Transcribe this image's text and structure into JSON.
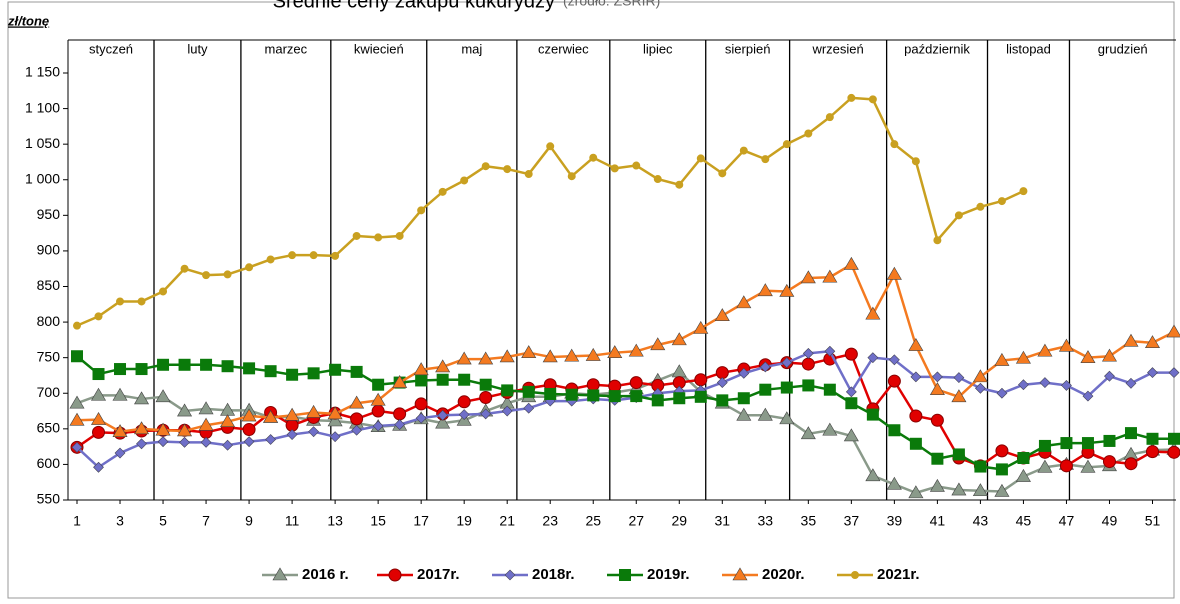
{
  "chart_data": {
    "type": "line",
    "title": "Średnie ceny zakupu kukurydzy",
    "subtitle": "(źródło: ZSRIR)",
    "y_label": "zł/tonę",
    "months": [
      "styczeń",
      "luty",
      "marzec",
      "kwiecień",
      "maj",
      "czerwiec",
      "lipiec",
      "sierpień",
      "wrzesień",
      "październik",
      "listopad",
      "grudzień"
    ],
    "x": [
      1,
      2,
      3,
      4,
      5,
      6,
      7,
      8,
      9,
      10,
      11,
      12,
      13,
      14,
      15,
      16,
      17,
      18,
      19,
      20,
      21,
      22,
      23,
      24,
      25,
      26,
      27,
      28,
      29,
      30,
      31,
      32,
      33,
      34,
      35,
      36,
      37,
      38,
      39,
      40,
      41,
      42,
      43,
      44,
      45,
      46,
      47,
      48,
      49,
      50,
      51,
      52
    ],
    "xlim": [
      1,
      52
    ],
    "xticks": [
      1,
      3,
      5,
      7,
      9,
      11,
      13,
      15,
      17,
      19,
      21,
      23,
      25,
      27,
      29,
      31,
      33,
      35,
      37,
      39,
      41,
      43,
      45,
      47,
      49,
      51
    ],
    "ylim": [
      550,
      1150
    ],
    "yticks": [
      550,
      600,
      650,
      700,
      750,
      800,
      850,
      900,
      950,
      {
        "value": 1000,
        "label": "1 000"
      },
      {
        "value": 1050,
        "label": "1 050"
      },
      {
        "value": 1100,
        "label": "1 100"
      },
      {
        "value": 1150,
        "label": "1 150"
      }
    ],
    "grid": false,
    "legend": "bottom",
    "series": [
      {
        "name": "2016 r.",
        "color": "#8a9a8a",
        "marker": "triangle",
        "values": [
          686,
          697,
          697,
          692,
          695,
          675,
          678,
          676,
          676,
          666,
          667,
          662,
          661,
          658,
          653,
          655,
          664,
          658,
          662,
          675,
          686,
          695,
          695,
          700,
          698,
          701,
          706,
          718,
          730,
          702,
          686,
          669,
          669,
          664,
          643,
          648,
          640,
          584,
          572,
          560,
          569,
          564,
          563,
          562,
          583,
          596,
          600,
          596,
          598,
          614,
          620,
          621
        ]
      },
      {
        "name": "2017r.",
        "color": "#e00000",
        "marker": "circle",
        "values": [
          624,
          645,
          644,
          647,
          648,
          648,
          645,
          652,
          649,
          673,
          655,
          666,
          672,
          664,
          675,
          671,
          685,
          671,
          688,
          694,
          701,
          707,
          712,
          706,
          712,
          710,
          715,
          711,
          715,
          719,
          729,
          734,
          740,
          743,
          741,
          748,
          755,
          678,
          717,
          668,
          662,
          609,
          598,
          619,
          609,
          617,
          598,
          617,
          604,
          601,
          618,
          617
        ]
      },
      {
        "name": "2018r.",
        "color": "#6f6fc8",
        "marker": "diamond",
        "values": [
          624,
          596,
          616,
          629,
          632,
          631,
          631,
          627,
          632,
          635,
          642,
          646,
          639,
          648,
          654,
          656,
          665,
          669,
          670,
          671,
          675,
          679,
          689,
          689,
          692,
          690,
          694,
          700,
          703,
          704,
          715,
          728,
          737,
          743,
          756,
          759,
          702,
          750,
          747,
          723,
          723,
          722,
          707,
          700,
          712,
          715,
          711,
          696,
          724,
          714,
          729,
          729
        ]
      },
      {
        "name": "2019r.",
        "color": "#0a7a0a",
        "marker": "square",
        "values": [
          752,
          727,
          734,
          734,
          740,
          740,
          740,
          738,
          735,
          731,
          726,
          728,
          733,
          730,
          712,
          715,
          718,
          719,
          719,
          712,
          704,
          702,
          699,
          698,
          697,
          696,
          696,
          690,
          693,
          695,
          690,
          693,
          705,
          708,
          711,
          705,
          686,
          670,
          648,
          629,
          608,
          614,
          597,
          593,
          609,
          626,
          630,
          630,
          633,
          644,
          636,
          636
        ]
      },
      {
        "name": "2020r.",
        "color": "#f47a20",
        "marker": "triangle",
        "values": [
          662,
          663,
          646,
          650,
          648,
          647,
          655,
          660,
          668,
          666,
          669,
          673,
          671,
          686,
          690,
          715,
          733,
          737,
          748,
          748,
          751,
          757,
          751,
          752,
          753,
          757,
          759,
          768,
          775,
          791,
          809,
          827,
          844,
          843,
          862,
          863,
          881,
          811,
          867,
          767,
          705,
          695,
          723,
          746,
          749,
          759,
          766,
          750,
          752,
          773,
          771,
          786
        ]
      },
      {
        "name": "2021r.",
        "color": "#c9a020",
        "marker": "dot",
        "values": [
          795,
          808,
          829,
          829,
          843,
          875,
          866,
          867,
          877,
          888,
          894,
          894,
          893,
          921,
          919,
          921,
          957,
          983,
          999,
          1019,
          1015,
          1008,
          1047,
          1005,
          1031,
          1016,
          1020,
          1001,
          993,
          1030,
          1009,
          1041,
          1029,
          1050,
          1065,
          1088,
          1115,
          1113,
          1050,
          1026,
          915,
          950,
          962,
          970,
          984,
          null,
          null,
          null,
          null,
          null,
          null,
          null
        ]
      }
    ]
  }
}
